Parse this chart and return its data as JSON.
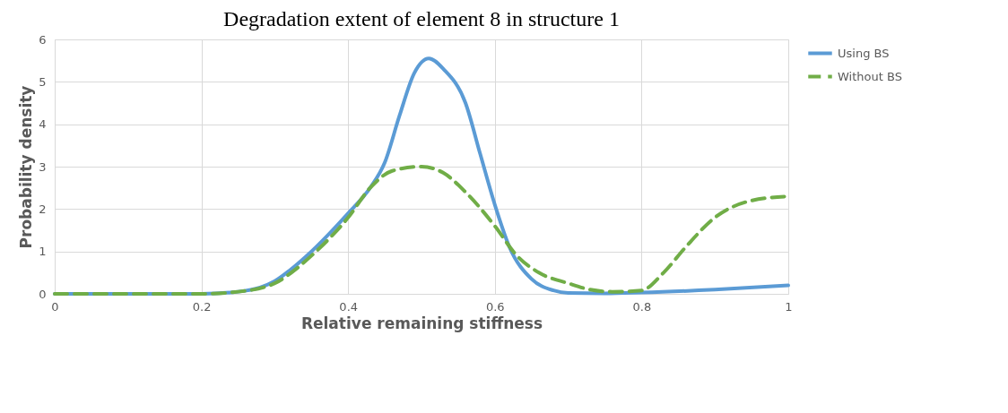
{
  "chart_data": {
    "type": "line",
    "title": "Degradation extent of element 8 in structure 1",
    "xlabel": "Relative remaining stiffness",
    "ylabel": "Probability density",
    "xlim": [
      0,
      1
    ],
    "xticks": [
      0,
      0.2,
      0.4,
      0.6,
      0.8,
      1
    ],
    "ylim": [
      0,
      6
    ],
    "yticks": [
      0,
      1,
      2,
      3,
      4,
      5,
      6
    ],
    "grid": true,
    "legend": "right",
    "marker": "none",
    "series": [
      {
        "name": "Using BS",
        "color": "#5b9bd5",
        "line_style": "solid",
        "x": [
          0,
          0.1,
          0.2,
          0.25,
          0.28,
          0.3,
          0.32,
          0.35,
          0.4,
          0.43,
          0.45,
          0.47,
          0.49,
          0.51,
          0.53,
          0.56,
          0.58,
          0.6,
          0.62,
          0.65,
          0.68,
          0.7,
          0.75,
          0.8,
          0.9,
          1.0
        ],
        "values": [
          0,
          0,
          0,
          0.05,
          0.15,
          0.3,
          0.55,
          1.0,
          1.9,
          2.5,
          3.1,
          4.2,
          5.2,
          5.55,
          5.3,
          4.5,
          3.3,
          2.1,
          1.1,
          0.35,
          0.08,
          0.02,
          0.01,
          0.03,
          0.1,
          0.2
        ]
      },
      {
        "name": "Without BS",
        "color": "#70ad47",
        "line_style": "dashed",
        "x": [
          0,
          0.1,
          0.2,
          0.25,
          0.3,
          0.33,
          0.35,
          0.4,
          0.43,
          0.46,
          0.5,
          0.53,
          0.56,
          0.6,
          0.63,
          0.66,
          0.7,
          0.73,
          0.76,
          0.8,
          0.83,
          0.86,
          0.9,
          0.95,
          1.0
        ],
        "values": [
          0,
          0,
          0,
          0.05,
          0.25,
          0.6,
          0.9,
          1.8,
          2.5,
          2.9,
          3.0,
          2.85,
          2.4,
          1.6,
          0.9,
          0.5,
          0.25,
          0.1,
          0.05,
          0.08,
          0.5,
          1.1,
          1.8,
          2.2,
          2.3
        ]
      }
    ]
  }
}
